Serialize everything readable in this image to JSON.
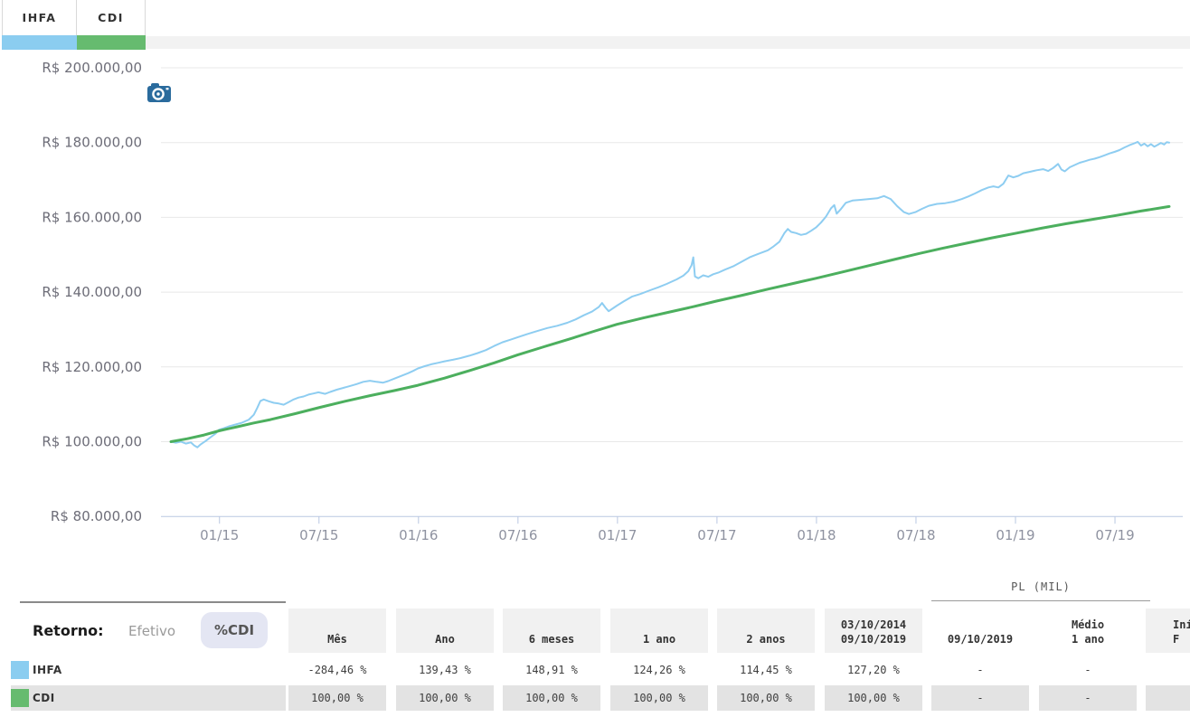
{
  "colors": {
    "ihfa_blue": "#8bcdf0",
    "ihfa_line": "#8ecdf1",
    "cdi_green": "#66bb6f",
    "cdi_line": "#4caf5e",
    "camera_blue": "#2a6b9d",
    "pill_bg": "#e4e6f3",
    "grid": "#e8e8e8",
    "axis": "#bac8e2",
    "header_bg": "#f1f1f1",
    "row_shaded_bg": "#e3e3e3",
    "top_strip": "#f2f2f2"
  },
  "tabs": [
    {
      "label": "IHFA",
      "color": "#8bcdf0"
    },
    {
      "label": "CDI",
      "color": "#66bb6f"
    }
  ],
  "toolbar": {
    "camera_icon": "camera-icon"
  },
  "chart_data": {
    "type": "line",
    "title": "",
    "xlabel": "",
    "ylabel": "",
    "x_unit": "months since 03/10/2014",
    "x_domain": [
      0,
      60.2
    ],
    "y_unit": "R$ thousand",
    "y_domain": [
      80,
      200
    ],
    "grid": true,
    "legend_position": "top-left-tabs",
    "y_ticks": [
      {
        "v": 200,
        "label": "R$ 200.000,00"
      },
      {
        "v": 180,
        "label": "R$ 180.000,00"
      },
      {
        "v": 160,
        "label": "R$ 160.000,00"
      },
      {
        "v": 140,
        "label": "R$ 140.000,00"
      },
      {
        "v": 120,
        "label": "R$ 120.000,00"
      },
      {
        "v": 100,
        "label": "R$ 100.000,00"
      },
      {
        "v": 80,
        "label": "R$ 80.000,00"
      }
    ],
    "x_ticks": [
      {
        "m": 2.93,
        "label": "01/15"
      },
      {
        "m": 8.93,
        "label": "07/15"
      },
      {
        "m": 14.93,
        "label": "01/16"
      },
      {
        "m": 20.93,
        "label": "07/16"
      },
      {
        "m": 26.93,
        "label": "01/17"
      },
      {
        "m": 32.93,
        "label": "07/17"
      },
      {
        "m": 38.93,
        "label": "01/18"
      },
      {
        "m": 44.93,
        "label": "07/18"
      },
      {
        "m": 50.93,
        "label": "01/19"
      },
      {
        "m": 56.93,
        "label": "07/19"
      }
    ],
    "series": [
      {
        "name": "IHFA",
        "color": "#8ecdf1",
        "width": 2,
        "points": [
          [
            0,
            100.0
          ],
          [
            0.3,
            99.7
          ],
          [
            0.6,
            100.0
          ],
          [
            0.9,
            99.5
          ],
          [
            1.2,
            99.8
          ],
          [
            1.4,
            99.0
          ],
          [
            1.6,
            98.5
          ],
          [
            1.8,
            99.3
          ],
          [
            2.1,
            100.2
          ],
          [
            2.4,
            101.2
          ],
          [
            2.7,
            102.2
          ],
          [
            2.9,
            103.2
          ],
          [
            3.2,
            103.6
          ],
          [
            3.5,
            104.1
          ],
          [
            3.9,
            104.6
          ],
          [
            4.3,
            105.1
          ],
          [
            4.7,
            105.9
          ],
          [
            5.0,
            107.2
          ],
          [
            5.2,
            109.0
          ],
          [
            5.4,
            110.9
          ],
          [
            5.6,
            111.3
          ],
          [
            5.9,
            110.8
          ],
          [
            6.2,
            110.4
          ],
          [
            6.5,
            110.2
          ],
          [
            6.8,
            109.9
          ],
          [
            7.1,
            110.6
          ],
          [
            7.4,
            111.3
          ],
          [
            7.7,
            111.8
          ],
          [
            8.0,
            112.1
          ],
          [
            8.3,
            112.6
          ],
          [
            8.6,
            112.9
          ],
          [
            8.9,
            113.2
          ],
          [
            9.3,
            112.8
          ],
          [
            9.6,
            113.3
          ],
          [
            10.0,
            113.9
          ],
          [
            10.4,
            114.4
          ],
          [
            10.8,
            114.9
          ],
          [
            11.2,
            115.4
          ],
          [
            11.6,
            116.0
          ],
          [
            12.0,
            116.3
          ],
          [
            12.4,
            116.0
          ],
          [
            12.8,
            115.8
          ],
          [
            13.1,
            116.2
          ],
          [
            13.5,
            116.9
          ],
          [
            13.9,
            117.6
          ],
          [
            14.3,
            118.3
          ],
          [
            14.6,
            118.9
          ],
          [
            14.9,
            119.6
          ],
          [
            15.3,
            120.2
          ],
          [
            15.7,
            120.7
          ],
          [
            16.1,
            121.1
          ],
          [
            16.5,
            121.5
          ],
          [
            17.0,
            121.9
          ],
          [
            17.5,
            122.4
          ],
          [
            18.0,
            123.0
          ],
          [
            18.5,
            123.7
          ],
          [
            19.0,
            124.5
          ],
          [
            19.5,
            125.6
          ],
          [
            20.0,
            126.6
          ],
          [
            20.5,
            127.3
          ],
          [
            20.9,
            127.9
          ],
          [
            21.5,
            128.8
          ],
          [
            22.1,
            129.6
          ],
          [
            22.7,
            130.4
          ],
          [
            23.3,
            131.0
          ],
          [
            23.9,
            131.8
          ],
          [
            24.4,
            132.7
          ],
          [
            24.9,
            133.8
          ],
          [
            25.4,
            134.8
          ],
          [
            25.8,
            136.0
          ],
          [
            26.0,
            137.1
          ],
          [
            26.2,
            135.9
          ],
          [
            26.4,
            134.9
          ],
          [
            26.7,
            135.8
          ],
          [
            26.9,
            136.4
          ],
          [
            27.3,
            137.5
          ],
          [
            27.8,
            138.8
          ],
          [
            28.3,
            139.5
          ],
          [
            28.9,
            140.5
          ],
          [
            29.4,
            141.3
          ],
          [
            29.9,
            142.2
          ],
          [
            30.5,
            143.4
          ],
          [
            30.9,
            144.4
          ],
          [
            31.2,
            145.6
          ],
          [
            31.4,
            147.2
          ],
          [
            31.5,
            149.3
          ],
          [
            31.6,
            144.2
          ],
          [
            31.8,
            143.7
          ],
          [
            32.1,
            144.5
          ],
          [
            32.4,
            144.1
          ],
          [
            32.7,
            144.8
          ],
          [
            33.0,
            145.2
          ],
          [
            33.4,
            146.0
          ],
          [
            33.9,
            146.9
          ],
          [
            34.4,
            148.1
          ],
          [
            34.9,
            149.3
          ],
          [
            35.4,
            150.2
          ],
          [
            36.0,
            151.2
          ],
          [
            36.3,
            152.1
          ],
          [
            36.7,
            153.5
          ],
          [
            37.0,
            155.8
          ],
          [
            37.2,
            156.9
          ],
          [
            37.4,
            156.1
          ],
          [
            37.7,
            155.8
          ],
          [
            38.0,
            155.3
          ],
          [
            38.3,
            155.6
          ],
          [
            38.6,
            156.4
          ],
          [
            38.9,
            157.3
          ],
          [
            39.2,
            158.6
          ],
          [
            39.5,
            160.2
          ],
          [
            39.8,
            162.4
          ],
          [
            40.0,
            163.3
          ],
          [
            40.15,
            161.0
          ],
          [
            40.4,
            162.2
          ],
          [
            40.7,
            163.9
          ],
          [
            41.1,
            164.5
          ],
          [
            41.6,
            164.7
          ],
          [
            42.1,
            164.9
          ],
          [
            42.6,
            165.1
          ],
          [
            43.0,
            165.7
          ],
          [
            43.4,
            164.9
          ],
          [
            43.8,
            163.0
          ],
          [
            44.2,
            161.4
          ],
          [
            44.5,
            160.9
          ],
          [
            44.9,
            161.4
          ],
          [
            45.3,
            162.3
          ],
          [
            45.7,
            163.1
          ],
          [
            46.2,
            163.6
          ],
          [
            46.7,
            163.8
          ],
          [
            47.2,
            164.2
          ],
          [
            47.7,
            164.9
          ],
          [
            48.1,
            165.6
          ],
          [
            48.5,
            166.4
          ],
          [
            48.9,
            167.3
          ],
          [
            49.3,
            168.0
          ],
          [
            49.6,
            168.3
          ],
          [
            49.9,
            168.0
          ],
          [
            50.2,
            169.0
          ],
          [
            50.5,
            171.2
          ],
          [
            50.8,
            170.7
          ],
          [
            51.1,
            171.1
          ],
          [
            51.4,
            171.8
          ],
          [
            51.8,
            172.2
          ],
          [
            52.2,
            172.6
          ],
          [
            52.6,
            172.9
          ],
          [
            52.9,
            172.4
          ],
          [
            53.2,
            173.2
          ],
          [
            53.5,
            174.3
          ],
          [
            53.7,
            172.8
          ],
          [
            53.9,
            172.3
          ],
          [
            54.2,
            173.4
          ],
          [
            54.5,
            174.0
          ],
          [
            54.8,
            174.6
          ],
          [
            55.1,
            175.0
          ],
          [
            55.4,
            175.4
          ],
          [
            55.7,
            175.7
          ],
          [
            56.0,
            176.1
          ],
          [
            56.3,
            176.6
          ],
          [
            56.6,
            177.1
          ],
          [
            56.9,
            177.5
          ],
          [
            57.2,
            178.0
          ],
          [
            57.5,
            178.7
          ],
          [
            57.8,
            179.3
          ],
          [
            58.1,
            179.8
          ],
          [
            58.3,
            180.2
          ],
          [
            58.5,
            179.2
          ],
          [
            58.7,
            179.7
          ],
          [
            58.9,
            179.0
          ],
          [
            59.1,
            179.6
          ],
          [
            59.3,
            178.9
          ],
          [
            59.5,
            179.4
          ],
          [
            59.7,
            179.9
          ],
          [
            59.9,
            179.5
          ],
          [
            60.05,
            180.1
          ],
          [
            60.2,
            180.0
          ]
        ]
      },
      {
        "name": "CDI",
        "color": "#4caf5e",
        "width": 3,
        "points": [
          [
            0,
            100.0
          ],
          [
            1,
            100.8
          ],
          [
            2,
            101.8
          ],
          [
            2.9,
            102.9
          ],
          [
            4,
            104.0
          ],
          [
            5,
            105.0
          ],
          [
            6,
            105.9
          ],
          [
            7.5,
            107.5
          ],
          [
            9,
            109.2
          ],
          [
            10.5,
            110.8
          ],
          [
            12,
            112.3
          ],
          [
            13.5,
            113.7
          ],
          [
            14.9,
            115.1
          ],
          [
            16.5,
            117.0
          ],
          [
            18,
            119.0
          ],
          [
            19.5,
            121.1
          ],
          [
            20.9,
            123.2
          ],
          [
            22.5,
            125.4
          ],
          [
            24,
            127.4
          ],
          [
            25.5,
            129.5
          ],
          [
            26.9,
            131.4
          ],
          [
            28.5,
            133.1
          ],
          [
            30,
            134.6
          ],
          [
            31.5,
            136.1
          ],
          [
            32.9,
            137.6
          ],
          [
            34.5,
            139.2
          ],
          [
            36,
            140.8
          ],
          [
            37.5,
            142.3
          ],
          [
            38.9,
            143.7
          ],
          [
            40.5,
            145.4
          ],
          [
            42,
            147.0
          ],
          [
            43.5,
            148.6
          ],
          [
            45,
            150.2
          ],
          [
            46.5,
            151.7
          ],
          [
            48,
            153.1
          ],
          [
            49.5,
            154.5
          ],
          [
            51,
            155.8
          ],
          [
            52.5,
            157.1
          ],
          [
            54,
            158.3
          ],
          [
            55.5,
            159.4
          ],
          [
            57,
            160.5
          ],
          [
            58.5,
            161.7
          ],
          [
            60.2,
            162.9
          ]
        ]
      }
    ]
  },
  "table": {
    "group_header": {
      "label": "PL (MIL)"
    },
    "retorno": {
      "label": "Retorno:",
      "options": [
        {
          "label": "Efetivo",
          "selected": false
        },
        {
          "label": "%CDI",
          "selected": true
        }
      ]
    },
    "columns": [
      {
        "label": "Mês",
        "group": "left"
      },
      {
        "label": "Ano",
        "group": "left"
      },
      {
        "label": "6 meses",
        "group": "left"
      },
      {
        "label": "1 ano",
        "group": "left"
      },
      {
        "label": "2 anos",
        "group": "left"
      },
      {
        "label": "03/10/2014\n09/10/2019",
        "group": "left"
      },
      {
        "label": "09/10/2019",
        "group": "pl"
      },
      {
        "label": "Médio\n1 ano",
        "group": "pl"
      },
      {
        "label": "Iní\nF",
        "group": "right",
        "clipped": true
      }
    ],
    "rows": [
      {
        "name": "IHFA",
        "swatch": "#8bcdf0",
        "shaded": false,
        "values": [
          "-284,46 %",
          "139,43 %",
          "148,91 %",
          "124,26 %",
          "114,45 %",
          "127,20 %",
          "-",
          "-",
          ""
        ]
      },
      {
        "name": "CDI",
        "swatch": "#66bb6f",
        "shaded": true,
        "values": [
          "100,00 %",
          "100,00 %",
          "100,00 %",
          "100,00 %",
          "100,00 %",
          "100,00 %",
          "-",
          "-",
          ""
        ]
      }
    ]
  }
}
